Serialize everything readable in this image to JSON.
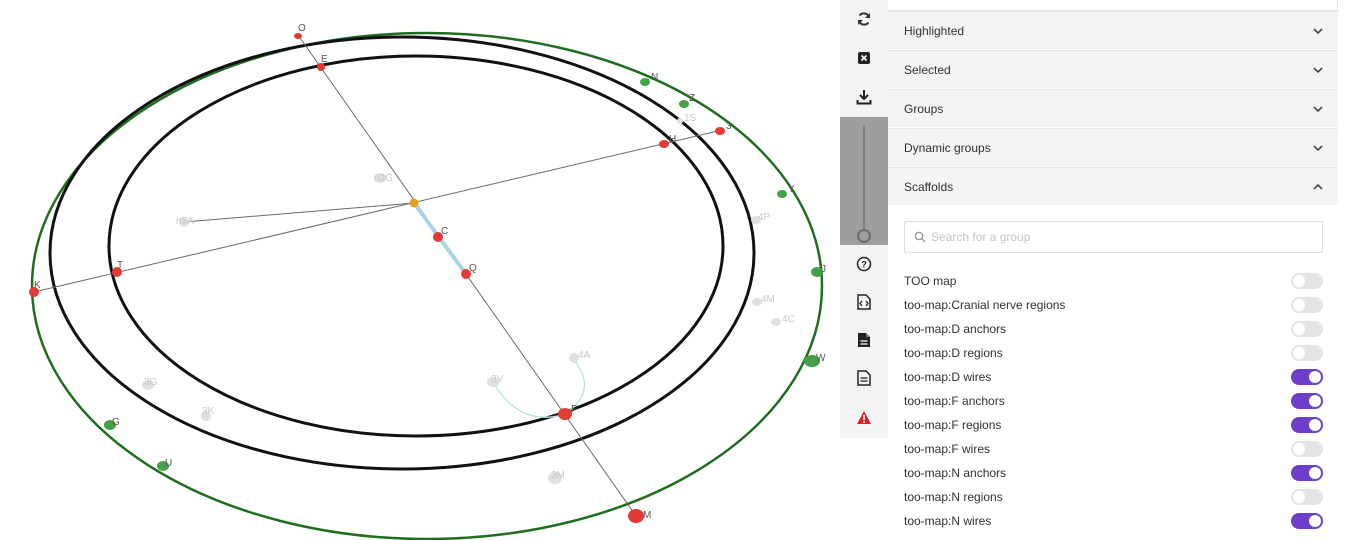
{
  "graph": {
    "nodes": [
      {
        "label": "O",
        "color": "#e53935"
      },
      {
        "label": "E",
        "color": "#e53935"
      },
      {
        "label": "3",
        "color": "#e53935"
      },
      {
        "label": "H",
        "color": "#e53935"
      },
      {
        "label": "1S",
        "color": "#e0e0e0"
      },
      {
        "label": "Z",
        "color": "#43a047"
      },
      {
        "label": "Y",
        "color": "#43a047"
      },
      {
        "label": "N",
        "color": "#43a047"
      },
      {
        "label": "K",
        "color": "#e53935"
      },
      {
        "label": "T",
        "color": "#e53935"
      },
      {
        "label": "C",
        "color": "#e53935"
      },
      {
        "label": "Q",
        "color": "#e53935"
      },
      {
        "label": "F",
        "color": "#e53935"
      },
      {
        "label": "M",
        "color": "#e53935"
      },
      {
        "label": "n3G",
        "color": "#e0e0e0"
      },
      {
        "label": "n3A",
        "color": "#e0e0e0"
      },
      {
        "label": "4P",
        "color": "#e0e0e0"
      },
      {
        "label": "4M",
        "color": "#e0e0e0"
      },
      {
        "label": "4C",
        "color": "#e0e0e0"
      },
      {
        "label": "4A",
        "color": "#e0e0e0"
      },
      {
        "label": "3V",
        "color": "#e0e0e0"
      },
      {
        "label": "3G",
        "color": "#e0e0e0"
      },
      {
        "label": "3K",
        "color": "#e0e0e0"
      },
      {
        "label": "3M",
        "color": "#e0e0e0"
      },
      {
        "label": "U",
        "color": "#43a047"
      },
      {
        "label": "W",
        "color": "#43a047"
      },
      {
        "label": "G",
        "color": "#43a047"
      },
      {
        "label": "J",
        "color": "#43a047"
      }
    ]
  },
  "toolbar": {
    "buttons": [
      {
        "name": "refresh-icon",
        "glyph": "↻"
      },
      {
        "name": "close-box-icon",
        "glyph": "×"
      },
      {
        "name": "download-icon",
        "glyph": "⤓"
      },
      {
        "name": "help-icon",
        "glyph": "?"
      },
      {
        "name": "code-file-icon",
        "glyph": "<>"
      },
      {
        "name": "file-icon",
        "glyph": "▤"
      },
      {
        "name": "text-file-icon",
        "glyph": "≡"
      },
      {
        "name": "warning-icon",
        "glyph": "!"
      }
    ],
    "zoom_level": 0
  },
  "panel": {
    "sections": [
      {
        "label": "Highlighted",
        "expanded": false
      },
      {
        "label": "Selected",
        "expanded": false
      },
      {
        "label": "Groups",
        "expanded": false
      },
      {
        "label": "Dynamic groups",
        "expanded": false
      },
      {
        "label": "Scaffolds",
        "expanded": true
      }
    ],
    "search": {
      "placeholder": "Search for a group",
      "value": ""
    },
    "groups": [
      {
        "label": "TOO map",
        "on": false
      },
      {
        "label": "too-map:Cranial nerve regions",
        "on": false
      },
      {
        "label": "too-map:D anchors",
        "on": false
      },
      {
        "label": "too-map:D regions",
        "on": false
      },
      {
        "label": "too-map:D wires",
        "on": true
      },
      {
        "label": "too-map:F anchors",
        "on": true
      },
      {
        "label": "too-map:F regions",
        "on": true
      },
      {
        "label": "too-map:F wires",
        "on": false
      },
      {
        "label": "too-map:N anchors",
        "on": true
      },
      {
        "label": "too-map:N regions",
        "on": false
      },
      {
        "label": "too-map:N wires",
        "on": true
      }
    ]
  },
  "colors": {
    "accent": "#6e40c9",
    "warning": "#e02020",
    "ring_outer": "#1f6e1f",
    "ring_inner": "#111111",
    "anchor_red": "#e53935",
    "anchor_green": "#43a047",
    "center_node": "#e0a020"
  }
}
